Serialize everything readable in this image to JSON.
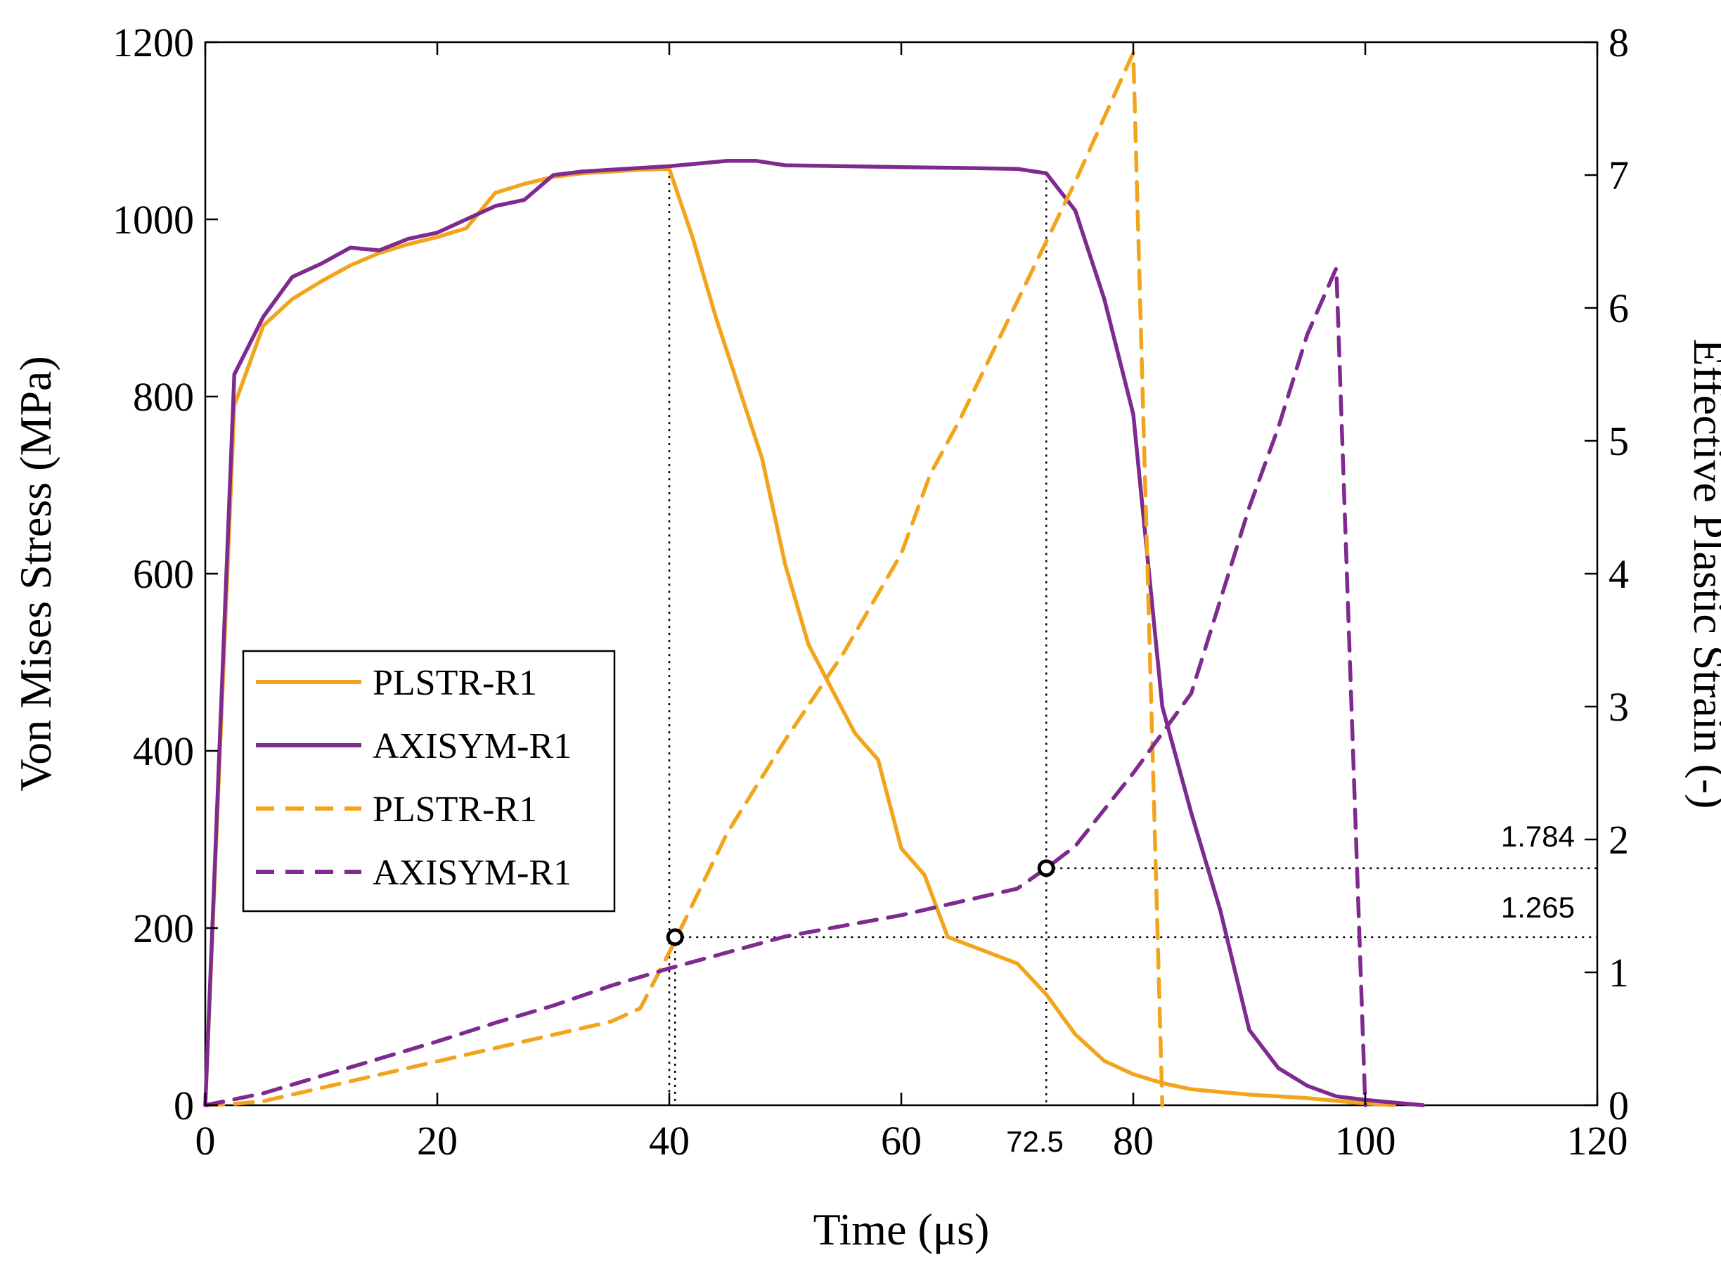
{
  "chart_data": {
    "type": "line",
    "title": "",
    "xlabel": "Time (μs)",
    "ylabel": "Von Mises Stress (MPa)",
    "y2label": "Effective Plastic Strain (-)",
    "xlim": [
      0,
      120
    ],
    "ylim": [
      0,
      1200
    ],
    "y2lim": [
      0,
      8
    ],
    "xticks": [
      "0",
      "20",
      "40",
      "60",
      "80",
      "100",
      "120"
    ],
    "yticks": [
      "0",
      "200",
      "400",
      "600",
      "800",
      "1000",
      "1200"
    ],
    "y2ticks": [
      "0",
      "1",
      "2",
      "3",
      "4",
      "5",
      "6",
      "7",
      "8"
    ],
    "grid": false,
    "legend_position": "center-left",
    "series": [
      {
        "name": "PLSTR-R1",
        "axis": "left",
        "style": "solid",
        "color": "#F2A51C",
        "x": [
          0,
          2.5,
          5,
          7.5,
          10,
          12.5,
          15,
          17.5,
          20,
          22.5,
          25,
          27.5,
          30,
          32.5,
          35,
          37.5,
          40,
          42,
          44,
          46,
          48,
          50,
          52,
          54,
          56,
          58,
          60,
          62,
          64,
          66,
          68,
          70,
          72.5,
          75,
          77.5,
          80,
          82.5,
          85,
          87.5,
          90,
          92.5,
          95,
          97.5,
          100,
          102.5
        ],
        "values": [
          0,
          790,
          880,
          910,
          930,
          948,
          962,
          972,
          980,
          990,
          1030,
          1040,
          1048,
          1052,
          1054,
          1056,
          1057,
          980,
          890,
          810,
          730,
          610,
          520,
          470,
          420,
          390,
          290,
          260,
          190,
          180,
          170,
          160,
          125,
          80,
          50,
          35,
          25,
          18,
          15,
          12,
          10,
          8,
          5,
          2,
          0
        ]
      },
      {
        "name": "AXISYM-R1",
        "axis": "left",
        "style": "solid",
        "color": "#7E2A8E",
        "x": [
          0,
          2.5,
          5,
          7.5,
          10,
          12.5,
          15,
          17.5,
          20,
          22.5,
          25,
          27.5,
          30,
          32.5,
          35,
          37.5,
          40,
          42.5,
          45,
          47.5,
          50,
          55,
          60,
          65,
          70,
          72.5,
          75,
          77.5,
          80,
          82.5,
          85,
          87.5,
          90,
          92.5,
          95,
          97.5,
          100,
          102.5,
          105
        ],
        "values": [
          0,
          825,
          890,
          935,
          950,
          968,
          965,
          978,
          985,
          1000,
          1015,
          1022,
          1050,
          1054,
          1056,
          1058,
          1060,
          1063,
          1066,
          1066,
          1061,
          1060,
          1059,
          1058,
          1057,
          1052,
          1010,
          910,
          780,
          450,
          330,
          220,
          85,
          42,
          22,
          10,
          6,
          3,
          0
        ]
      },
      {
        "name": "PLSTR-R1",
        "axis": "right",
        "style": "dashed",
        "color": "#F2A51C",
        "x": [
          0,
          2.5,
          5,
          10,
          15,
          20,
          25,
          30,
          35,
          37.5,
          40,
          42.5,
          45,
          50,
          55,
          60,
          62.5,
          65,
          70,
          75,
          80,
          82.5
        ],
        "values": [
          0,
          0.01,
          0.03,
          0.13,
          0.23,
          0.33,
          0.43,
          0.53,
          0.63,
          0.73,
          1.15,
          1.6,
          2.05,
          2.75,
          3.4,
          4.15,
          4.75,
          5.15,
          6.05,
          6.95,
          7.92,
          0
        ]
      },
      {
        "name": "AXISYM-R1",
        "axis": "right",
        "style": "dashed",
        "color": "#7E2A8E",
        "x": [
          0,
          5,
          10,
          15,
          20,
          25,
          30,
          35,
          40,
          45,
          50,
          55,
          60,
          65,
          70,
          72.5,
          75,
          80,
          85,
          90,
          92.5,
          95,
          97.5,
          100
        ],
        "values": [
          0,
          0.09,
          0.22,
          0.35,
          0.48,
          0.62,
          0.75,
          0.9,
          1.03,
          1.15,
          1.27,
          1.35,
          1.43,
          1.53,
          1.63,
          1.784,
          1.95,
          2.5,
          3.1,
          4.5,
          5.1,
          5.8,
          6.3,
          0
        ]
      }
    ],
    "annotations": [
      {
        "label": "1.265",
        "x": 40.5,
        "y2": 1.265
      },
      {
        "label": "1.784",
        "x": 72.5,
        "y2": 1.784
      },
      {
        "label": "72.5",
        "x": 72.5
      }
    ],
    "reference_lines": {
      "vertical_x": [
        40.5,
        72.5
      ],
      "horizontal_y2": [
        1.265,
        1.784
      ]
    }
  }
}
